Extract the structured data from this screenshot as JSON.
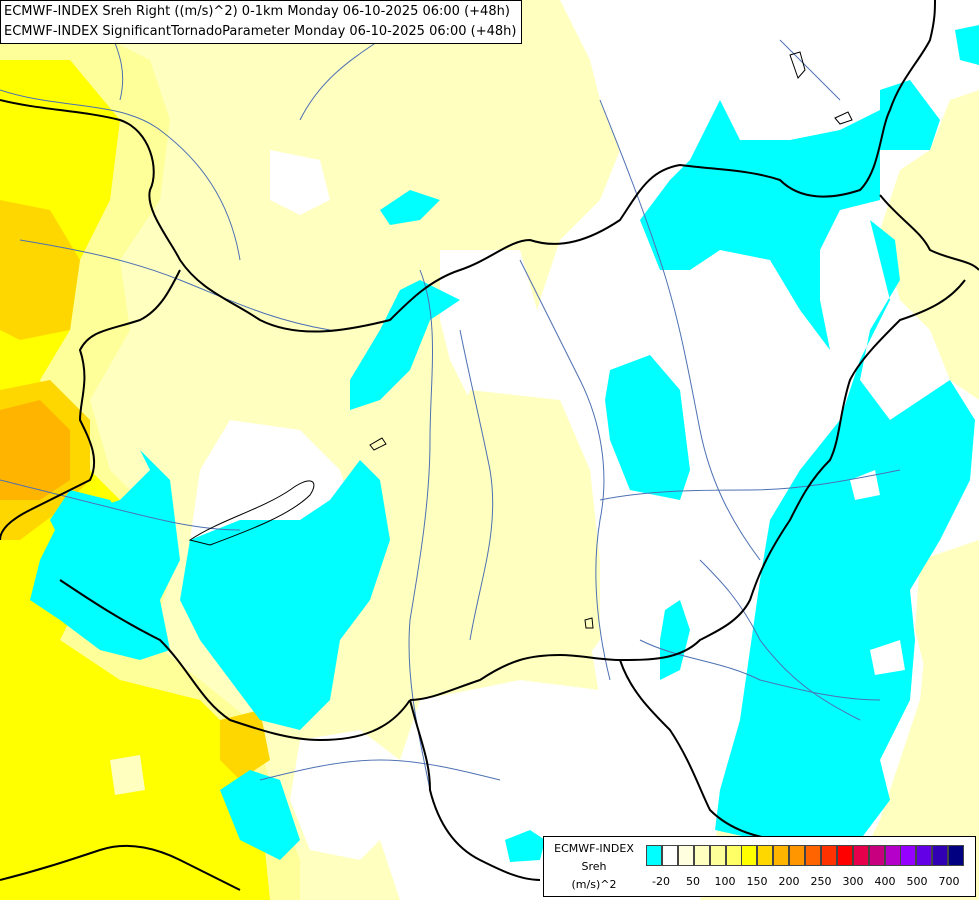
{
  "title": {
    "line1": "ECMWF-INDEX Sreh Right ((m/s)^2) 0-1km Monday 06-10-2025 06:00 (+48h)",
    "line2": "ECMWF-INDEX SignificantTornadoParameter Monday 06-10-2025 06:00 (+48h)"
  },
  "legend": {
    "source": "ECMWF-INDEX",
    "name": "Sreh",
    "unit": "(m/s)^2",
    "swatch_colors": [
      "#00ffff",
      "#ffffff",
      "#ffffe0",
      "#ffffc0",
      "#ffff99",
      "#ffff66",
      "#ffff00",
      "#ffd700",
      "#ffb400",
      "#ff9600",
      "#ff6400",
      "#ff3200",
      "#ff0000",
      "#e6004c",
      "#c80080",
      "#b400c8",
      "#9600ff",
      "#6400e6",
      "#3200b4",
      "#000080"
    ],
    "ticks": [
      "-20",
      "50",
      "100",
      "150",
      "200",
      "250",
      "300",
      "400",
      "500",
      "700"
    ]
  },
  "map_colors": {
    "negative": "#00ffff",
    "zero": "#ffffff",
    "light": "#ffffc0",
    "pale": "#ffff99",
    "yellow": "#ffff00",
    "gold": "#ffd700",
    "orange": "#ffb400"
  }
}
